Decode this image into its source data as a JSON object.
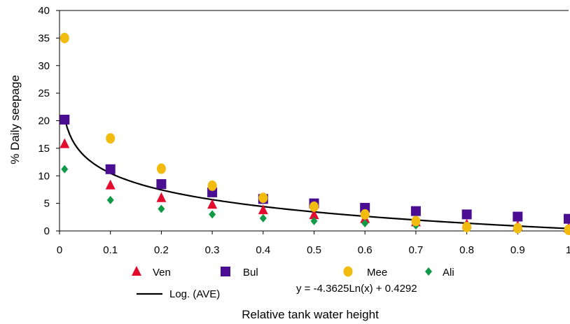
{
  "chart_data": {
    "type": "scatter",
    "xlabel": "Relative tank water height",
    "ylabel": "% Daily seepage",
    "xlim": [
      0,
      1
    ],
    "ylim": [
      0,
      40
    ],
    "x_ticks": [
      "0",
      "0.1",
      "0.2",
      "0.3",
      "0.4",
      "0.5",
      "0.6",
      "0.7",
      "0.8",
      "0.9",
      "1"
    ],
    "y_ticks": [
      "0",
      "5",
      "10",
      "15",
      "20",
      "25",
      "30",
      "35",
      "40"
    ],
    "grid": false,
    "legend_position": "bottom",
    "series": [
      {
        "name": "Ven",
        "marker": "triangle",
        "color": "#e30b2e",
        "x": [
          0.01,
          0.1,
          0.2,
          0.3,
          0.4,
          0.5,
          0.6,
          0.7,
          0.8,
          0.9,
          1.0
        ],
        "y": [
          15.8,
          8.3,
          6.0,
          4.8,
          3.8,
          2.9,
          2.2,
          1.6,
          1.2,
          0.9,
          0.5
        ]
      },
      {
        "name": "Bul",
        "marker": "square",
        "color": "#4b0d92",
        "x": [
          0.01,
          0.1,
          0.2,
          0.3,
          0.4,
          0.5,
          0.6,
          0.7,
          0.8,
          0.9,
          1.0
        ],
        "y": [
          20.2,
          11.2,
          8.5,
          7.0,
          5.8,
          5.0,
          4.2,
          3.6,
          3.0,
          2.6,
          2.2
        ]
      },
      {
        "name": "Mee",
        "marker": "circle",
        "color": "#f2bb10",
        "x": [
          0.01,
          0.1,
          0.2,
          0.3,
          0.4,
          0.5,
          0.6,
          0.7,
          0.8,
          0.9,
          1.0
        ],
        "y": [
          35.0,
          16.8,
          11.3,
          8.2,
          6.0,
          4.4,
          3.0,
          1.8,
          0.7,
          0.5,
          0.2
        ]
      },
      {
        "name": "Ali",
        "marker": "diamond",
        "color": "#109a46",
        "x": [
          0.01,
          0.1,
          0.2,
          0.3,
          0.4,
          0.5,
          0.6,
          0.7,
          0.8,
          0.9,
          1.0
        ],
        "y": [
          11.2,
          5.6,
          4.0,
          3.0,
          2.3,
          1.8,
          1.4,
          1.0,
          0.6,
          0.3,
          0.0
        ]
      }
    ],
    "trendline": {
      "name": "Log. (AVE)",
      "equation": "y = -4.3625Ln(x) + 0.4292",
      "a": -4.3625,
      "b": 0.4292,
      "x_start": 0.01,
      "x_end": 1.0,
      "color": "#000000"
    }
  }
}
